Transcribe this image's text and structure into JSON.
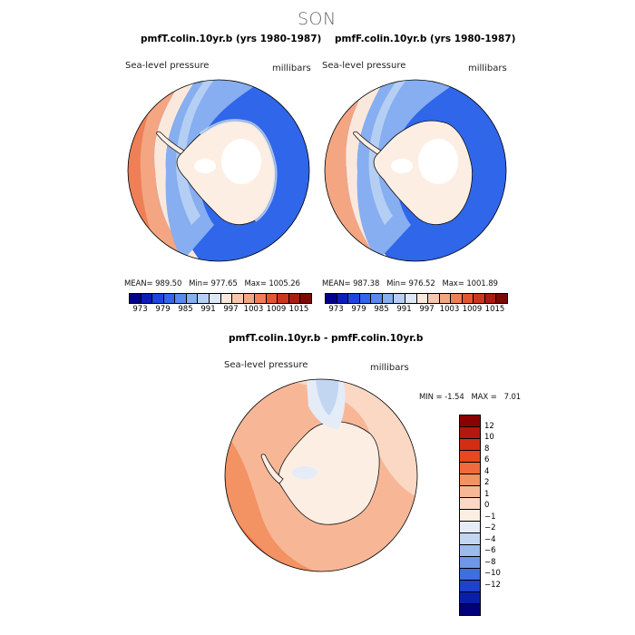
{
  "season": "SON",
  "panel_left": {
    "title": "pmfT.colin.10yr.b (yrs 1980-1987)",
    "field": "Sea-level pressure",
    "units": "millibars",
    "stats": {
      "mean_label": "MEAN=",
      "mean": "989.50",
      "min_label": "Min=",
      "min": "977.65",
      "max_label": "Max=",
      "max": "1005.26"
    }
  },
  "panel_right": {
    "title": "pmfF.colin.10yr.b (yrs 1980-1987)",
    "field": "Sea-level pressure",
    "units": "millibars",
    "stats": {
      "mean_label": "MEAN=",
      "mean": "987.38",
      "min_label": "Min=",
      "min": "976.52",
      "max_label": "Max=",
      "max": "1001.89"
    }
  },
  "panel_diff": {
    "title": "pmfT.colin.10yr.b - pmfF.colin.10yr.b",
    "field": "Sea-level pressure",
    "units": "millibars",
    "stats": {
      "min_label": "MIN =",
      "min": "-1.54",
      "max_label": "MAX =",
      "max": "7.01"
    }
  },
  "colorbar_abs": {
    "ticks": [
      "973",
      "979",
      "985",
      "991",
      "997",
      "1003",
      "1009",
      "1015"
    ],
    "colors": [
      "#00008a",
      "#0a1fb4",
      "#1e46dc",
      "#2f66ea",
      "#5789ee",
      "#86aef0",
      "#b5cff4",
      "#dce8f8",
      "#fbe8dd",
      "#f6c7ad",
      "#f4a582",
      "#ee7f57",
      "#e3572f",
      "#c9381c",
      "#a51e10",
      "#7a0a05"
    ]
  },
  "colorbar_diff": {
    "ticks": [
      "12",
      "10",
      "8",
      "6",
      "4",
      "2",
      "1",
      "0",
      "−1",
      "−2",
      "−4",
      "−6",
      "−8",
      "−10",
      "−12"
    ],
    "colors": [
      "#8b0000",
      "#b2180f",
      "#d32d13",
      "#e8471f",
      "#f06a3c",
      "#f39262",
      "#f7b796",
      "#fbd8c4",
      "#fdeee4",
      "#e4ecf8",
      "#c2d6f2",
      "#9cbaee",
      "#6f96e8",
      "#3f6ee0",
      "#1c43c8",
      "#0a1fa8",
      "#00007a"
    ]
  },
  "map_colors": {
    "land_light": "#fdeee4",
    "land_white": "#ffffff",
    "ocean_deep": "#2f66ea",
    "ocean_mid": "#5789ee",
    "ocean_light": "#86aef0",
    "ocean_pale": "#b5cff4",
    "ridge_warm": "#f4a582",
    "ridge_hot": "#ee7f57",
    "diff_warm1": "#fbd8c4",
    "diff_warm2": "#f7b796",
    "diff_warm3": "#f39262",
    "diff_warm4": "#f06a3c",
    "diff_cool1": "#e4ecf8",
    "diff_cool2": "#c2d6f2"
  }
}
